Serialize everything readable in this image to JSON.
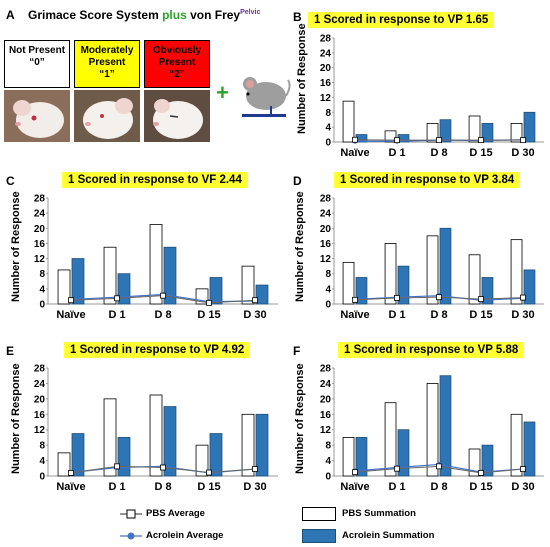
{
  "panelA": {
    "letter": "A",
    "title_pre": "Grimace Score System ",
    "title_plus": "plus",
    "title_post": " von Frey",
    "title_sup": "Pelvic",
    "scores": [
      {
        "label": "Not Present",
        "value": "“0”",
        "color": "#ffffff"
      },
      {
        "label": "Moderately Present",
        "value": "“1”",
        "color": "#ffff00"
      },
      {
        "label": "Obviously Present",
        "value": "“2”",
        "color": "#ff0000"
      }
    ],
    "plus_sign": "+"
  },
  "chart_data": [
    {
      "panel": "B",
      "type": "bar",
      "title": "1 Scored in response to VP 1.65",
      "ylabel": "Number of Response",
      "ylim": [
        0,
        28
      ],
      "yticks": [
        0,
        4,
        8,
        12,
        16,
        20,
        24,
        28
      ],
      "categories": [
        "Naïve",
        "D 1",
        "D 8",
        "D 15",
        "D 30"
      ],
      "series": [
        {
          "name": "PBS Summation",
          "values": [
            11,
            3,
            5,
            7,
            5
          ]
        },
        {
          "name": "Acrolein Summation",
          "values": [
            2,
            2,
            6,
            5,
            8
          ]
        },
        {
          "name": "PBS Average",
          "values": [
            0.6,
            0.5,
            0.5,
            0.5,
            0.5
          ]
        },
        {
          "name": "Acrolein Average",
          "values": [
            0.2,
            0.2,
            0.5,
            0.4,
            0.6
          ]
        }
      ]
    },
    {
      "panel": "C",
      "type": "bar",
      "title": "1 Scored in response to VF 2.44",
      "ylabel": "Number of Response",
      "ylim": [
        0,
        28
      ],
      "yticks": [
        0,
        4,
        8,
        12,
        16,
        20,
        24,
        28
      ],
      "categories": [
        "Naïve",
        "D 1",
        "D 8",
        "D 15",
        "D 30"
      ],
      "series": [
        {
          "name": "PBS Summation",
          "values": [
            9,
            15,
            21,
            4,
            10
          ]
        },
        {
          "name": "Acrolein Summation",
          "values": [
            12,
            8,
            15,
            7,
            5
          ]
        },
        {
          "name": "PBS Average",
          "values": [
            1,
            1.5,
            2.2,
            0.3,
            1
          ]
        },
        {
          "name": "Acrolein Average",
          "values": [
            1.2,
            1.8,
            2.5,
            0.6,
            0.8
          ]
        }
      ]
    },
    {
      "panel": "D",
      "type": "bar",
      "title": "1 Scored in response to VP 3.84",
      "ylabel": "Number of Response",
      "ylim": [
        0,
        28
      ],
      "yticks": [
        0,
        4,
        8,
        12,
        16,
        20,
        24,
        28
      ],
      "categories": [
        "Naïve",
        "D 1",
        "D 8",
        "D 15",
        "D 30"
      ],
      "series": [
        {
          "name": "PBS Summation",
          "values": [
            11,
            16,
            18,
            13,
            17
          ]
        },
        {
          "name": "Acrolein Summation",
          "values": [
            7,
            10,
            20,
            7,
            9
          ]
        },
        {
          "name": "PBS Average",
          "values": [
            1.1,
            1.6,
            1.8,
            1.3,
            1.7
          ]
        },
        {
          "name": "Acrolein Average",
          "values": [
            1.2,
            1.8,
            2.2,
            1.0,
            1.5
          ]
        }
      ]
    },
    {
      "panel": "E",
      "type": "bar",
      "title": "1 Scored in response to VP 4.92",
      "ylabel": "Number of Response",
      "ylim": [
        0,
        28
      ],
      "yticks": [
        0,
        4,
        8,
        12,
        16,
        20,
        24,
        28
      ],
      "categories": [
        "Naïve",
        "D 1",
        "D 8",
        "D 15",
        "D 30"
      ],
      "series": [
        {
          "name": "PBS Summation",
          "values": [
            6,
            20,
            21,
            8,
            16
          ]
        },
        {
          "name": "Acrolein Summation",
          "values": [
            11,
            10,
            18,
            11,
            16
          ]
        },
        {
          "name": "PBS Average",
          "values": [
            0.8,
            2.5,
            2.2,
            0.9,
            1.8
          ]
        },
        {
          "name": "Acrolein Average",
          "values": [
            0.9,
            2.2,
            2.5,
            0.8,
            1.8
          ]
        }
      ]
    },
    {
      "panel": "F",
      "type": "bar",
      "title": "1 Scored in response to VP 5.88",
      "ylabel": "Number of Response",
      "ylim": [
        0,
        28
      ],
      "yticks": [
        0,
        4,
        8,
        12,
        16,
        20,
        24,
        28
      ],
      "categories": [
        "Naïve",
        "D 1",
        "D 8",
        "D 15",
        "D 30"
      ],
      "series": [
        {
          "name": "PBS Summation",
          "values": [
            10,
            19,
            24,
            7,
            16
          ]
        },
        {
          "name": "Acrolein Summation",
          "values": [
            10,
            12,
            26,
            8,
            14
          ]
        },
        {
          "name": "PBS Average",
          "values": [
            1.0,
            1.9,
            2.5,
            0.8,
            1.8
          ]
        },
        {
          "name": "Acrolein Average",
          "values": [
            1.3,
            2.2,
            3.0,
            1.0,
            1.8
          ]
        }
      ]
    }
  ],
  "legend": {
    "pbs_average": "PBS Average",
    "acrolein_average": "Acrolein Average",
    "pbs_summation": "PBS Summation",
    "acrolein_summation": "Acrolein Summation"
  },
  "colors": {
    "acrolein_bar": "#2e75b6",
    "acrolein_line": "#4472c4",
    "pbs_bar": "#ffffff",
    "title_bg": "#ffff33"
  }
}
